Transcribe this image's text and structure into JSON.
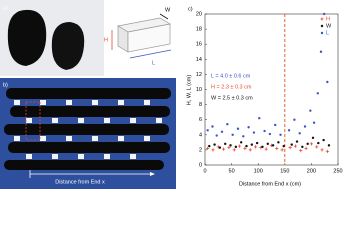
{
  "panels": {
    "a": {
      "label": "a)",
      "dims": [
        "W",
        "H",
        "L"
      ]
    },
    "b": {
      "label": "b)",
      "caption": "Distance from End x"
    }
  },
  "chart_data": {
    "type": "scatter",
    "title": "c)",
    "xlabel": "Distance from End x (cm)",
    "ylabel": "H, W, L (cm)",
    "xlim": [
      0,
      250
    ],
    "xticks": [
      0,
      50,
      100,
      150,
      200,
      250
    ],
    "ylim": [
      0,
      20
    ],
    "yticks": [
      0,
      2,
      4,
      6,
      8,
      10,
      12,
      14,
      16,
      18,
      20
    ],
    "reference_line": {
      "x": 150,
      "color": "#e8622c"
    },
    "legend": "upper right",
    "series": [
      {
        "name": "H",
        "color": "#e8482c",
        "marker": "plus",
        "x": [
          5,
          15,
          25,
          35,
          45,
          55,
          65,
          75,
          85,
          95,
          105,
          115,
          125,
          135,
          145,
          160,
          170,
          180,
          190,
          200,
          210,
          220,
          230
        ],
        "values": [
          2.2,
          2.0,
          2.4,
          2.1,
          2.3,
          2.0,
          2.5,
          2.2,
          2.0,
          2.4,
          2.3,
          2.1,
          2.6,
          2.2,
          2.0,
          2.3,
          2.5,
          1.9,
          2.2,
          2.8,
          2.4,
          2.0,
          1.8
        ]
      },
      {
        "name": "W",
        "color": "#111111",
        "marker": "dot",
        "x": [
          8,
          18,
          28,
          38,
          48,
          58,
          68,
          78,
          88,
          98,
          108,
          118,
          128,
          138,
          148,
          163,
          173,
          183,
          193,
          203,
          213,
          223,
          233
        ],
        "values": [
          2.5,
          2.7,
          2.3,
          2.8,
          2.6,
          2.4,
          3.0,
          2.5,
          2.7,
          2.9,
          2.4,
          2.8,
          2.6,
          3.0,
          2.5,
          2.7,
          3.1,
          2.4,
          2.8,
          3.6,
          2.9,
          3.3,
          2.6
        ]
      },
      {
        "name": "L",
        "color": "#3a55c8",
        "marker": "dot",
        "x": [
          5,
          14,
          22,
          32,
          42,
          52,
          62,
          72,
          82,
          92,
          102,
          112,
          122,
          132,
          142,
          158,
          168,
          178,
          188,
          198,
          205,
          212,
          218,
          224,
          230
        ],
        "values": [
          4.6,
          5.1,
          3.9,
          4.4,
          5.4,
          4.0,
          4.8,
          3.8,
          5.0,
          4.3,
          6.2,
          4.5,
          4.1,
          5.3,
          4.0,
          4.6,
          6.0,
          4.2,
          5.1,
          7.2,
          5.6,
          9.5,
          15.0,
          20.0,
          11.0
        ]
      }
    ],
    "annotations": [
      {
        "text": "L = 4.0 ± 0.6 cm",
        "color": "#3a55c8"
      },
      {
        "text": "H = 2.3 ± 0.3 cm",
        "color": "#e8482c"
      },
      {
        "text": "W = 2.5 ± 0.3 cm",
        "color": "#111111"
      }
    ]
  }
}
